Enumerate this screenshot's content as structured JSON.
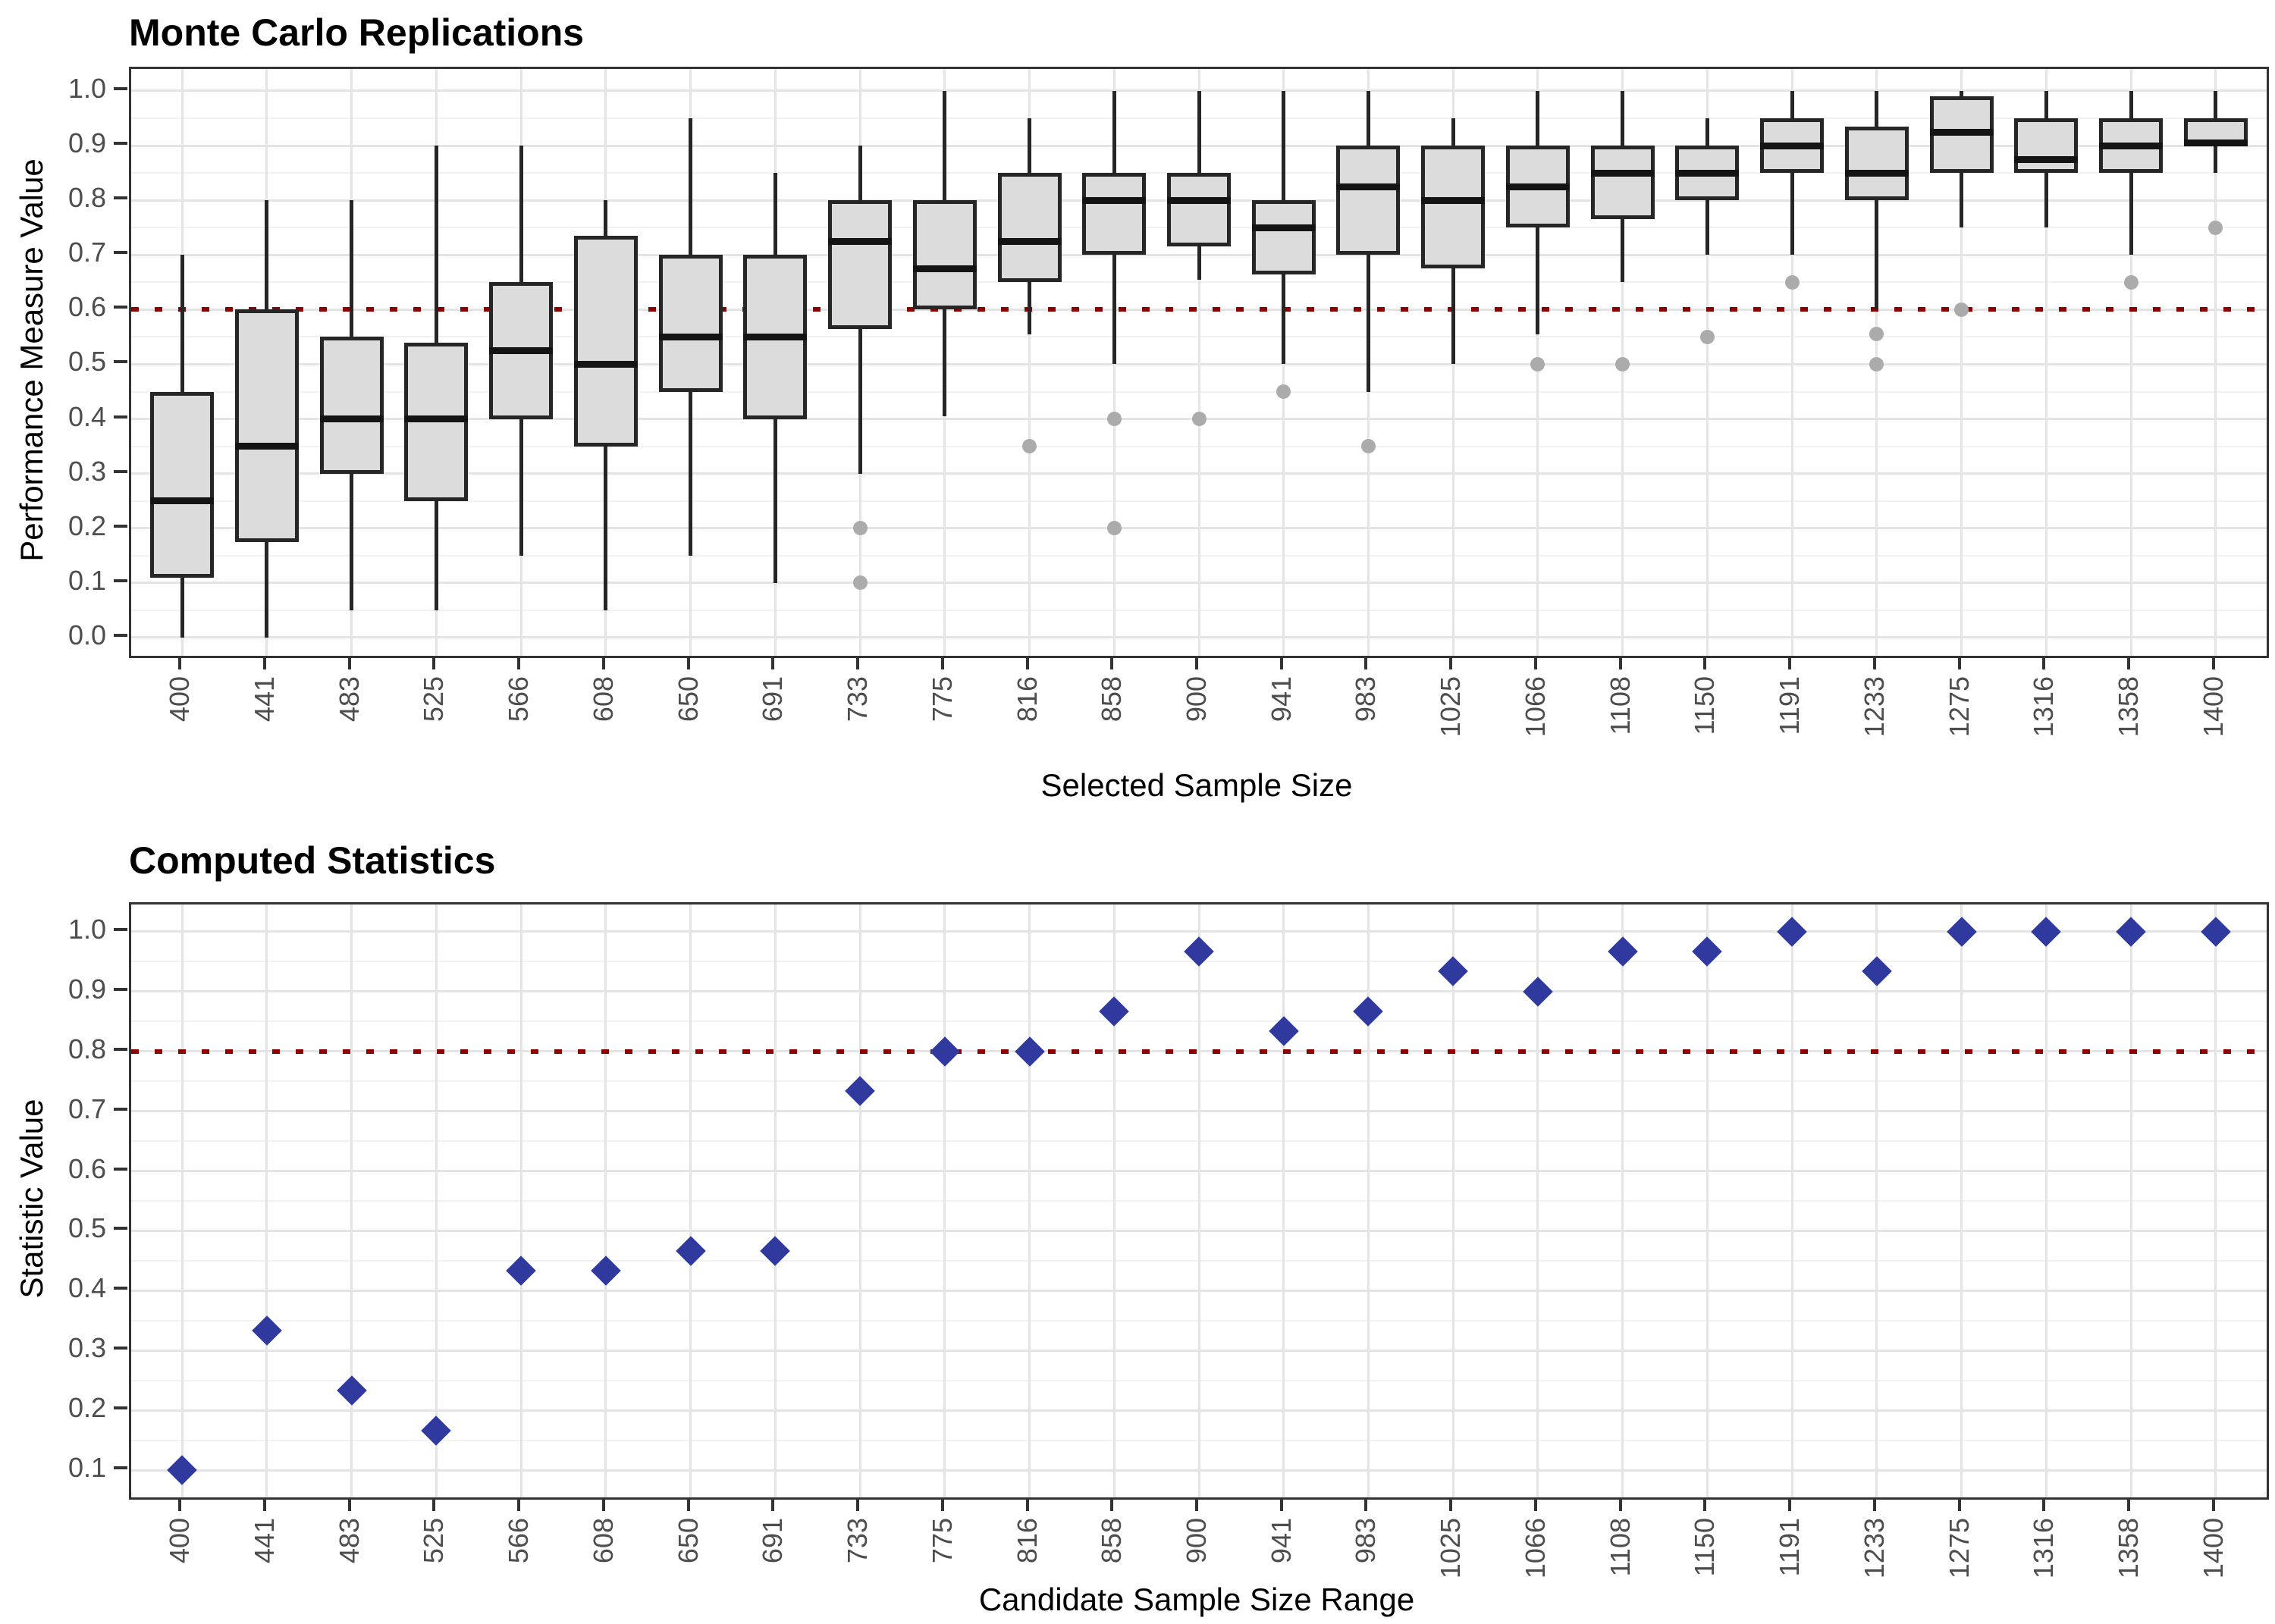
{
  "chart_data": [
    {
      "type": "boxplot",
      "title": "Monte Carlo Replications",
      "xlabel": "Selected Sample Size",
      "ylabel": "Performance Measure Value",
      "categories": [
        "400",
        "441",
        "483",
        "525",
        "566",
        "608",
        "650",
        "691",
        "733",
        "775",
        "816",
        "858",
        "900",
        "941",
        "983",
        "1025",
        "1066",
        "1108",
        "1150",
        "1191",
        "1233",
        "1275",
        "1316",
        "1358",
        "1400"
      ],
      "yticks": [
        "0.0",
        "0.1",
        "0.2",
        "0.3",
        "0.4",
        "0.5",
        "0.6",
        "0.7",
        "0.8",
        "0.9",
        "1.0"
      ],
      "ylim": [
        0,
        1
      ],
      "grid": "on",
      "legend": "none",
      "reference_line": {
        "y": 0.6,
        "style": "dotted"
      },
      "boxes": [
        {
          "category": "400",
          "whisker_low": 0.0,
          "q1": 0.11,
          "median": 0.25,
          "q3": 0.45,
          "whisker_high": 0.7,
          "outliers": []
        },
        {
          "category": "441",
          "whisker_low": 0.0,
          "q1": 0.175,
          "median": 0.35,
          "q3": 0.6,
          "whisker_high": 0.8,
          "outliers": []
        },
        {
          "category": "483",
          "whisker_low": 0.05,
          "q1": 0.3,
          "median": 0.4,
          "q3": 0.55,
          "whisker_high": 0.8,
          "outliers": []
        },
        {
          "category": "525",
          "whisker_low": 0.05,
          "q1": 0.25,
          "median": 0.4,
          "q3": 0.54,
          "whisker_high": 0.9,
          "outliers": []
        },
        {
          "category": "566",
          "whisker_low": 0.15,
          "q1": 0.4,
          "median": 0.525,
          "q3": 0.65,
          "whisker_high": 0.9,
          "outliers": []
        },
        {
          "category": "608",
          "whisker_low": 0.05,
          "q1": 0.35,
          "median": 0.5,
          "q3": 0.735,
          "whisker_high": 0.8,
          "outliers": []
        },
        {
          "category": "650",
          "whisker_low": 0.15,
          "q1": 0.45,
          "median": 0.55,
          "q3": 0.7,
          "whisker_high": 0.95,
          "outliers": []
        },
        {
          "category": "691",
          "whisker_low": 0.1,
          "q1": 0.4,
          "median": 0.55,
          "q3": 0.7,
          "whisker_high": 0.85,
          "outliers": []
        },
        {
          "category": "733",
          "whisker_low": 0.3,
          "q1": 0.565,
          "median": 0.725,
          "q3": 0.8,
          "whisker_high": 0.9,
          "outliers": [
            0.2,
            0.1
          ]
        },
        {
          "category": "775",
          "whisker_low": 0.405,
          "q1": 0.6,
          "median": 0.675,
          "q3": 0.8,
          "whisker_high": 1.0,
          "outliers": []
        },
        {
          "category": "816",
          "whisker_low": 0.555,
          "q1": 0.65,
          "median": 0.725,
          "q3": 0.85,
          "whisker_high": 0.95,
          "outliers": [
            0.35
          ]
        },
        {
          "category": "858",
          "whisker_low": 0.5,
          "q1": 0.7,
          "median": 0.8,
          "q3": 0.85,
          "whisker_high": 1.0,
          "outliers": [
            0.4,
            0.2
          ]
        },
        {
          "category": "900",
          "whisker_low": 0.655,
          "q1": 0.715,
          "median": 0.8,
          "q3": 0.85,
          "whisker_high": 1.0,
          "outliers": [
            0.4
          ]
        },
        {
          "category": "941",
          "whisker_low": 0.5,
          "q1": 0.665,
          "median": 0.75,
          "q3": 0.8,
          "whisker_high": 1.0,
          "outliers": [
            0.45
          ]
        },
        {
          "category": "983",
          "whisker_low": 0.45,
          "q1": 0.7,
          "median": 0.825,
          "q3": 0.9,
          "whisker_high": 1.0,
          "outliers": [
            0.35
          ]
        },
        {
          "category": "1025",
          "whisker_low": 0.5,
          "q1": 0.675,
          "median": 0.8,
          "q3": 0.9,
          "whisker_high": 0.95,
          "outliers": []
        },
        {
          "category": "1066",
          "whisker_low": 0.555,
          "q1": 0.75,
          "median": 0.825,
          "q3": 0.9,
          "whisker_high": 1.0,
          "outliers": [
            0.5
          ]
        },
        {
          "category": "1108",
          "whisker_low": 0.65,
          "q1": 0.765,
          "median": 0.85,
          "q3": 0.9,
          "whisker_high": 1.0,
          "outliers": [
            0.5
          ]
        },
        {
          "category": "1150",
          "whisker_low": 0.7,
          "q1": 0.8,
          "median": 0.85,
          "q3": 0.9,
          "whisker_high": 0.95,
          "outliers": [
            0.55
          ]
        },
        {
          "category": "1191",
          "whisker_low": 0.7,
          "q1": 0.85,
          "median": 0.9,
          "q3": 0.95,
          "whisker_high": 1.0,
          "outliers": [
            0.65
          ]
        },
        {
          "category": "1233",
          "whisker_low": 0.6,
          "q1": 0.8,
          "median": 0.85,
          "q3": 0.935,
          "whisker_high": 1.0,
          "outliers": [
            0.555,
            0.5
          ]
        },
        {
          "category": "1275",
          "whisker_low": 0.75,
          "q1": 0.85,
          "median": 0.925,
          "q3": 0.99,
          "whisker_high": 1.0,
          "outliers": [
            0.6
          ]
        },
        {
          "category": "1316",
          "whisker_low": 0.75,
          "q1": 0.85,
          "median": 0.875,
          "q3": 0.95,
          "whisker_high": 1.0,
          "outliers": []
        },
        {
          "category": "1358",
          "whisker_low": 0.7,
          "q1": 0.85,
          "median": 0.9,
          "q3": 0.95,
          "whisker_high": 1.0,
          "outliers": [
            0.65
          ]
        },
        {
          "category": "1400",
          "whisker_low": 0.85,
          "q1": 0.9,
          "median": 0.905,
          "q3": 0.95,
          "whisker_high": 1.0,
          "outliers": [
            0.75
          ]
        }
      ]
    },
    {
      "type": "scatter",
      "title": "Computed Statistics",
      "xlabel": "Candidate Sample Size Range",
      "ylabel": "Statistic Value",
      "marker": "diamond",
      "categories": [
        "400",
        "441",
        "483",
        "525",
        "566",
        "608",
        "650",
        "691",
        "733",
        "775",
        "816",
        "858",
        "900",
        "941",
        "983",
        "1025",
        "1066",
        "1108",
        "1150",
        "1191",
        "1233",
        "1275",
        "1316",
        "1358",
        "1400"
      ],
      "yticks": [
        "0.1",
        "0.2",
        "0.3",
        "0.4",
        "0.5",
        "0.6",
        "0.7",
        "0.8",
        "0.9",
        "1.0"
      ],
      "ylim": [
        0.055,
        1.045
      ],
      "grid": "on",
      "legend": "none",
      "reference_line": {
        "y": 0.8,
        "style": "dotted"
      },
      "values": [
        0.1,
        0.333,
        0.233,
        0.167,
        0.433,
        0.433,
        0.467,
        0.467,
        0.733,
        0.8,
        0.8,
        0.867,
        0.967,
        0.833,
        0.867,
        0.933,
        0.9,
        0.967,
        0.967,
        1.0,
        0.933,
        1.0,
        1.0,
        1.0,
        1.0
      ]
    }
  ],
  "colors": {
    "box_fill": "#DCDCDC",
    "box_border": "#262626",
    "median": "#141414",
    "outlier": "#ABABAB",
    "reference": "#8B0000",
    "marker": "#30399E",
    "grid_major": "#E4E4E4",
    "grid_minor": "#F2F2F2",
    "panel_border": "#333333",
    "tick_mark": "#333333",
    "tick_label": "#4D4D4D",
    "text": "#000000",
    "background": "#FFFFFF"
  }
}
